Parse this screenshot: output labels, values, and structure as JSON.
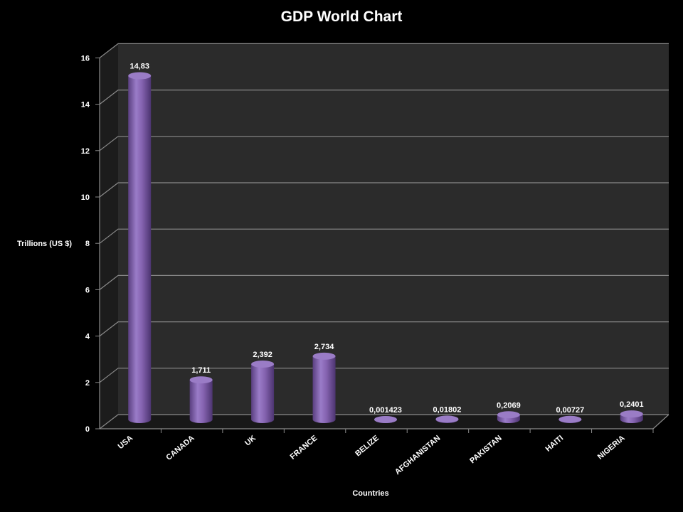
{
  "chart_data": {
    "type": "bar",
    "title": "GDP World Chart",
    "xlabel": "Countries",
    "ylabel": "Trillions (US $)",
    "categories": [
      "USA",
      "CANADA",
      "UK",
      "FRANCE",
      "BELIZE",
      "AFGHANISTAN",
      "PAKISTAN",
      "HAITI",
      "NIGERIA"
    ],
    "values": [
      14.83,
      1.711,
      2.392,
      2.734,
      0.001423,
      0.01802,
      0.2069,
      0.00727,
      0.2401
    ],
    "data_labels": [
      "14,83",
      "1,711",
      "2,392",
      "2,734",
      "0,001423",
      "0,01802",
      "0,2069",
      "0,00727",
      "0,2401"
    ],
    "ylim": [
      0,
      16
    ],
    "yticks": [
      0,
      2,
      4,
      6,
      8,
      10,
      12,
      14,
      16
    ],
    "grid": true,
    "legend": "none",
    "colors": {
      "background": "#000000",
      "plot_back_wall": "#2b2b2b",
      "plot_side_wall": "#1c1c1c",
      "gridline": "#8a8a8a",
      "bar_fill": "#8060a8",
      "bar_top": "#9a7cc6",
      "text": "#ffffff"
    }
  }
}
